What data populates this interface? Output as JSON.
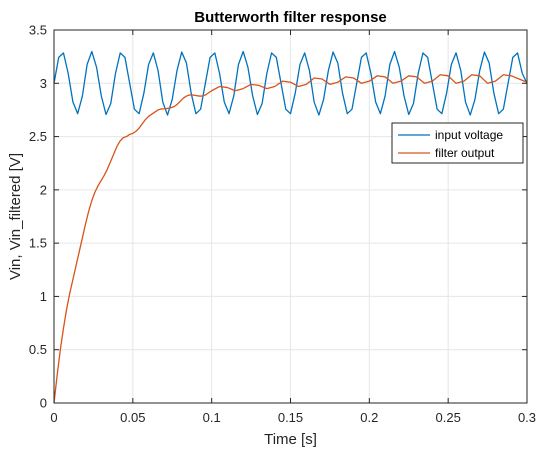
{
  "chart_data": {
    "type": "line",
    "title": "Butterworth filter response",
    "xlabel": "Time [s]",
    "ylabel": "Vin, Vin_filtered [V]",
    "xlim": [
      0,
      0.3
    ],
    "ylim": [
      0,
      3.5
    ],
    "xticks": [
      0,
      0.05,
      0.1,
      0.15,
      0.2,
      0.25,
      0.3
    ],
    "xtick_labels": [
      "0",
      "0.05",
      "0.1",
      "0.15",
      "0.2",
      "0.25",
      "0.3"
    ],
    "yticks": [
      0,
      0.5,
      1,
      1.5,
      2,
      2.5,
      3,
      3.5
    ],
    "ytick_labels": [
      "0",
      "0.5",
      "1",
      "1.5",
      "2",
      "2.5",
      "3",
      "3.5"
    ],
    "grid": true,
    "legend_position": "top-right",
    "series": [
      {
        "name": "input voltage",
        "color": "#0072BD",
        "x": [
          0,
          0.003,
          0.006,
          0.009,
          0.012,
          0.015,
          0.018,
          0.021,
          0.024,
          0.027,
          0.03,
          0.033,
          0.036,
          0.039,
          0.042,
          0.045,
          0.048,
          0.051,
          0.054,
          0.057,
          0.06,
          0.063,
          0.066,
          0.069,
          0.072,
          0.075,
          0.078,
          0.081,
          0.084,
          0.087,
          0.09,
          0.093,
          0.096,
          0.099,
          0.102,
          0.105,
          0.108,
          0.111,
          0.114,
          0.117,
          0.12,
          0.123,
          0.126,
          0.129,
          0.132,
          0.135,
          0.138,
          0.141,
          0.144,
          0.147,
          0.15,
          0.153,
          0.156,
          0.159,
          0.162,
          0.165,
          0.168,
          0.171,
          0.174,
          0.177,
          0.18,
          0.183,
          0.186,
          0.189,
          0.192,
          0.195,
          0.198,
          0.201,
          0.204,
          0.207,
          0.21,
          0.213,
          0.216,
          0.219,
          0.222,
          0.225,
          0.228,
          0.231,
          0.234,
          0.237,
          0.24,
          0.243,
          0.246,
          0.249,
          0.252,
          0.255,
          0.258,
          0.261,
          0.264,
          0.267,
          0.27,
          0.273,
          0.276,
          0.279,
          0.282,
          0.285,
          0.288,
          0.291,
          0.294,
          0.297,
          0.3
        ],
        "y": [
          3.0,
          3.243,
          3.285,
          3.093,
          2.824,
          2.715,
          2.88,
          3.176,
          3.298,
          3.15,
          2.882,
          2.707,
          2.81,
          3.093,
          3.285,
          3.243,
          3.0,
          2.757,
          2.715,
          2.907,
          3.176,
          3.285,
          3.12,
          2.824,
          2.702,
          2.85,
          3.118,
          3.293,
          3.19,
          2.907,
          2.715,
          2.757,
          3.0,
          3.243,
          3.285,
          3.093,
          2.824,
          2.715,
          2.88,
          3.176,
          3.298,
          3.15,
          2.882,
          2.707,
          2.81,
          3.093,
          3.285,
          3.243,
          3.0,
          2.757,
          2.715,
          2.907,
          3.176,
          3.285,
          3.12,
          2.824,
          2.702,
          2.85,
          3.118,
          3.293,
          3.19,
          2.907,
          2.715,
          2.757,
          3.0,
          3.243,
          3.285,
          3.093,
          2.824,
          2.715,
          2.88,
          3.176,
          3.298,
          3.15,
          2.882,
          2.707,
          2.81,
          3.093,
          3.285,
          3.243,
          3.0,
          2.757,
          2.715,
          2.907,
          3.176,
          3.285,
          3.12,
          2.824,
          2.702,
          2.85,
          3.118,
          3.293,
          3.19,
          2.907,
          2.715,
          2.757,
          3.0,
          3.243,
          3.285,
          3.093,
          3.0
        ]
      },
      {
        "name": "filter output",
        "color": "#D95319",
        "x": [
          0,
          0.002,
          0.004,
          0.006,
          0.008,
          0.01,
          0.012,
          0.014,
          0.016,
          0.018,
          0.02,
          0.022,
          0.024,
          0.026,
          0.028,
          0.03,
          0.032,
          0.034,
          0.036,
          0.038,
          0.04,
          0.042,
          0.044,
          0.046,
          0.048,
          0.05,
          0.052,
          0.054,
          0.056,
          0.058,
          0.06,
          0.062,
          0.064,
          0.066,
          0.068,
          0.07,
          0.072,
          0.074,
          0.076,
          0.078,
          0.08,
          0.082,
          0.084,
          0.086,
          0.088,
          0.09,
          0.092,
          0.094,
          0.096,
          0.098,
          0.1,
          0.105,
          0.11,
          0.115,
          0.12,
          0.125,
          0.13,
          0.135,
          0.14,
          0.145,
          0.15,
          0.155,
          0.16,
          0.165,
          0.17,
          0.175,
          0.18,
          0.185,
          0.19,
          0.195,
          0.2,
          0.205,
          0.21,
          0.215,
          0.22,
          0.225,
          0.23,
          0.235,
          0.24,
          0.245,
          0.25,
          0.255,
          0.26,
          0.265,
          0.27,
          0.275,
          0.28,
          0.285,
          0.29,
          0.295,
          0.3
        ],
        "y": [
          0,
          0.26,
          0.5,
          0.7,
          0.88,
          1.03,
          1.16,
          1.29,
          1.42,
          1.55,
          1.68,
          1.8,
          1.9,
          1.98,
          2.04,
          2.09,
          2.14,
          2.2,
          2.27,
          2.34,
          2.41,
          2.46,
          2.49,
          2.5,
          2.52,
          2.53,
          2.55,
          2.58,
          2.62,
          2.66,
          2.69,
          2.71,
          2.73,
          2.75,
          2.76,
          2.76,
          2.765,
          2.77,
          2.78,
          2.8,
          2.83,
          2.86,
          2.88,
          2.89,
          2.89,
          2.885,
          2.88,
          2.88,
          2.89,
          2.91,
          2.93,
          2.97,
          2.96,
          2.93,
          2.95,
          2.99,
          2.98,
          2.95,
          2.97,
          3.02,
          3.01,
          2.97,
          2.99,
          3.05,
          3.04,
          2.99,
          3.01,
          3.06,
          3.05,
          3.0,
          3.02,
          3.07,
          3.06,
          3.0,
          3.02,
          3.07,
          3.06,
          3.0,
          3.02,
          3.08,
          3.07,
          3.0,
          3.02,
          3.08,
          3.07,
          3.0,
          3.02,
          3.08,
          3.07,
          3.04,
          3.01
        ]
      }
    ]
  }
}
